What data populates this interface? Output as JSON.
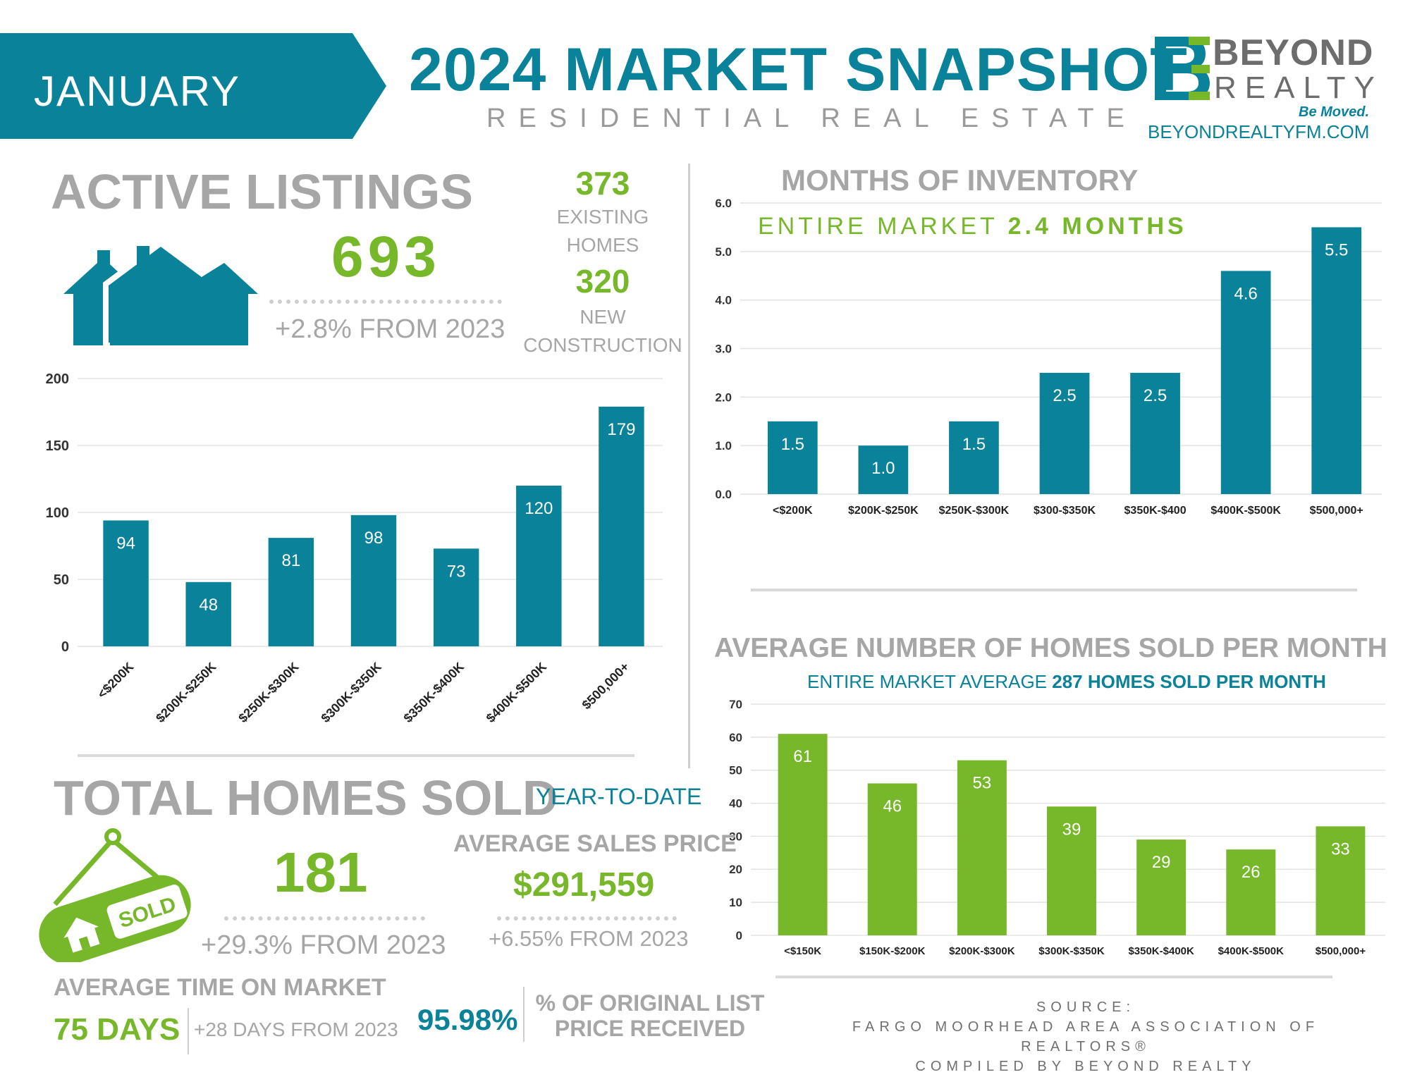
{
  "header": {
    "month": "JANUARY",
    "title": "2024 MARKET SNAPSHOT",
    "subtitle": "RESIDENTIAL REAL ESTATE",
    "brand_line1": "BEYOND",
    "brand_line2": "REALTY",
    "tagline": "Be Moved.",
    "url": "BEYONDREALTYFM.COM"
  },
  "active_listings": {
    "heading": "ACTIVE LISTINGS",
    "total": "693",
    "change": "+2.8% FROM 2023",
    "existing_value": "373",
    "existing_label_1": "EXISTING",
    "existing_label_2": "HOMES",
    "new_value": "320",
    "new_label_1": "NEW",
    "new_label_2": "CONSTRUCTION"
  },
  "months_inventory": {
    "heading": "MONTHS OF INVENTORY",
    "entire_label": "ENTIRE MARKET",
    "entire_value": "2.4 MONTHS"
  },
  "homes_sold_month": {
    "heading": "AVERAGE NUMBER OF HOMES SOLD PER MONTH",
    "entire_label": "ENTIRE MARKET AVERAGE",
    "entire_value": "287 HOMES SOLD PER MONTH"
  },
  "total_sold": {
    "heading": "TOTAL HOMES SOLD",
    "ytd": "YEAR-TO-DATE",
    "value": "181",
    "change": "+29.3% FROM 2023",
    "sign_text": "SOLD"
  },
  "avg_price": {
    "heading": "AVERAGE SALES PRICE",
    "value": "$291,559",
    "change": "+6.55% FROM 2023"
  },
  "time_on_market": {
    "heading": "AVERAGE TIME ON MARKET",
    "value": "75 DAYS",
    "change": "+28 DAYS FROM 2023"
  },
  "list_price": {
    "value": "95.98%",
    "label_1": "% OF ORIGINAL LIST",
    "label_2": "PRICE RECEIVED"
  },
  "source": {
    "line1": "SOURCE:",
    "line2": "FARGO MOORHEAD AREA ASSOCIATION OF REALTORS®",
    "line3": "COMPILED BY BEYOND REALTY"
  },
  "colors": {
    "teal": "#0a8299",
    "green": "#76b82a",
    "gray": "#a6a6a6"
  },
  "icons": [
    "houses-icon",
    "sold-sign-icon"
  ],
  "chart_data": [
    {
      "id": "active",
      "type": "bar",
      "categories": [
        "<$200K",
        "$200K-$250K",
        "$250K-$300K",
        "$300K-$350K",
        "$350K-$400K",
        "$400K-$500K",
        "$500,000+"
      ],
      "values": [
        94,
        48,
        81,
        98,
        73,
        120,
        179
      ],
      "ylim": [
        0,
        200
      ],
      "yticks": [
        "0",
        "50",
        "100",
        "150",
        "200"
      ],
      "grid": true
    },
    {
      "id": "inventory",
      "type": "bar",
      "categories": [
        "<$200K",
        "$200K-$250K",
        "$250K-$300K",
        "$300-$350K",
        "$350K-$400",
        "$400K-$500K",
        "$500,000+"
      ],
      "values": [
        1.5,
        1.0,
        1.5,
        2.5,
        2.5,
        4.6,
        5.5
      ],
      "value_labels": [
        "1.5",
        "1.0",
        "1.5",
        "2.5",
        "2.5",
        "4.6",
        "5.5"
      ],
      "ylim": [
        0,
        6
      ],
      "yticks": [
        "0.0",
        "1.0",
        "2.0",
        "3.0",
        "4.0",
        "5.0",
        "6.0"
      ],
      "grid": true
    },
    {
      "id": "sold",
      "type": "bar",
      "categories": [
        "<$150K",
        "$150K-$200K",
        "$200K-$300K",
        "$300K-$350K",
        "$350K-$400K",
        "$400K-$500K",
        "$500,000+"
      ],
      "values": [
        61,
        46,
        53,
        39,
        29,
        26,
        33
      ],
      "ylim": [
        0,
        70
      ],
      "yticks": [
        "0",
        "10",
        "20",
        "30",
        "40",
        "50",
        "60",
        "70"
      ],
      "grid": true
    }
  ]
}
